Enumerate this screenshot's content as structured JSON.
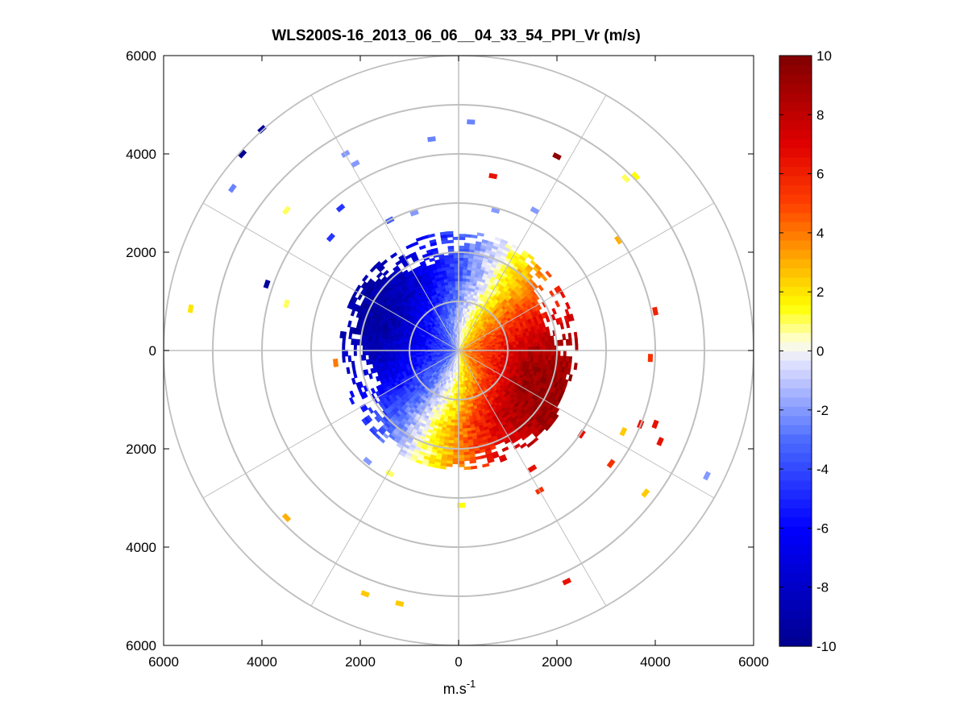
{
  "chart_data": {
    "type": "heatmap",
    "subtype": "polar-ppi",
    "title": "WLS200S-16_2013_06_06__04_33_54_PPI_Vr (m/s)",
    "xlabel_base": "m.s",
    "xlabel_sup": "-1",
    "ylabel": "",
    "xlim": [
      -6000,
      6000
    ],
    "ylim": [
      -6000,
      6000
    ],
    "x_ticks": [
      -6000,
      -4000,
      -2000,
      0,
      2000,
      4000,
      6000
    ],
    "x_tick_labels": [
      "6000",
      "4000",
      "2000",
      "0",
      "2000",
      "4000",
      "6000"
    ],
    "y_ticks": [
      6000,
      4000,
      2000,
      0,
      -2000,
      -4000,
      -6000
    ],
    "y_tick_labels": [
      "6000",
      "4000",
      "2000",
      "0",
      "2000",
      "4000",
      "6000"
    ],
    "polar_grid": {
      "range_rings": [
        1000,
        2000,
        3000,
        4000,
        5000,
        6000
      ],
      "spokes_deg": [
        0,
        30,
        60,
        90,
        120,
        150,
        180,
        210,
        240,
        270,
        300,
        330
      ]
    },
    "colorbar": {
      "min": -10,
      "max": 10,
      "tick_values": [
        10,
        8,
        6,
        4,
        2,
        0,
        -2,
        -4,
        -6,
        -8,
        -10
      ],
      "tick_labels": [
        "10",
        "8",
        "6",
        "4",
        "2",
        "0",
        "-2",
        "-4",
        "-6",
        "-8",
        "-10"
      ],
      "colormap": "blue-white-yellow-red",
      "stops": [
        {
          "v": -10,
          "color": "#00008f"
        },
        {
          "v": -6,
          "color": "#0000ff"
        },
        {
          "v": -3,
          "color": "#4c6cff"
        },
        {
          "v": -0.3,
          "color": "#e6e6ff"
        },
        {
          "v": 0.3,
          "color": "#ffffe0"
        },
        {
          "v": 1.5,
          "color": "#ffff00"
        },
        {
          "v": 3,
          "color": "#ffb000"
        },
        {
          "v": 5,
          "color": "#ff4000"
        },
        {
          "v": 7,
          "color": "#e00000"
        },
        {
          "v": 10,
          "color": "#800000"
        }
      ]
    },
    "field_model": {
      "description": "radial velocity field; negative on west side, positive on east side",
      "max_range_m": 2400,
      "outliers": [
        {
          "x": -4000,
          "y": 4500,
          "v": -9.5
        },
        {
          "x": -4400,
          "y": 4000,
          "v": -9.8
        },
        {
          "x": -4600,
          "y": 3300,
          "v": -2.5
        },
        {
          "x": -2300,
          "y": 4000,
          "v": -2.0
        },
        {
          "x": -2100,
          "y": 3800,
          "v": -2.0
        },
        {
          "x": -550,
          "y": 4300,
          "v": -2.5
        },
        {
          "x": 250,
          "y": 4650,
          "v": -2.5
        },
        {
          "x": -3500,
          "y": 2850,
          "v": 1.0
        },
        {
          "x": -3900,
          "y": 1350,
          "v": -9.5
        },
        {
          "x": -3500,
          "y": 950,
          "v": 1.0
        },
        {
          "x": -5450,
          "y": 850,
          "v": 2.0
        },
        {
          "x": -2400,
          "y": 2900,
          "v": -4.5
        },
        {
          "x": -2600,
          "y": 2300,
          "v": -4.5
        },
        {
          "x": -1400,
          "y": 2650,
          "v": -3.5
        },
        {
          "x": -900,
          "y": 2800,
          "v": -2.0
        },
        {
          "x": 750,
          "y": 2850,
          "v": -2.0
        },
        {
          "x": 1550,
          "y": 2850,
          "v": -2.0
        },
        {
          "x": 2000,
          "y": 3950,
          "v": 9.5
        },
        {
          "x": 700,
          "y": 3550,
          "v": 6.5
        },
        {
          "x": 3400,
          "y": 3500,
          "v": 1.0
        },
        {
          "x": 3600,
          "y": 3550,
          "v": 1.5
        },
        {
          "x": 3250,
          "y": 2250,
          "v": 3.0
        },
        {
          "x": 4000,
          "y": 800,
          "v": 6.0
        },
        {
          "x": 3900,
          "y": -150,
          "v": 5.5
        },
        {
          "x": 3700,
          "y": -1500,
          "v": 6.5
        },
        {
          "x": 4000,
          "y": -1500,
          "v": 6.5
        },
        {
          "x": 4100,
          "y": -1850,
          "v": 6.5
        },
        {
          "x": 3350,
          "y": -1650,
          "v": 2.5
        },
        {
          "x": 3100,
          "y": -2300,
          "v": 5.5
        },
        {
          "x": 3800,
          "y": -2900,
          "v": 2.5
        },
        {
          "x": 5050,
          "y": -2550,
          "v": -2.0
        },
        {
          "x": -2500,
          "y": -250,
          "v": 4.0
        },
        {
          "x": -1850,
          "y": -2250,
          "v": -2.0
        },
        {
          "x": -1400,
          "y": -2500,
          "v": 1.0
        },
        {
          "x": -3500,
          "y": -3400,
          "v": 3.0
        },
        {
          "x": -1900,
          "y": -4950,
          "v": 2.5
        },
        {
          "x": -1200,
          "y": -5150,
          "v": 2.5
        },
        {
          "x": 50,
          "y": -3150,
          "v": 1.5
        },
        {
          "x": 1650,
          "y": -2850,
          "v": 5.5
        },
        {
          "x": 2200,
          "y": -4700,
          "v": 6.5
        },
        {
          "x": 1500,
          "y": -2400,
          "v": 6.5
        },
        {
          "x": 2500,
          "y": -1700,
          "v": 6.5
        }
      ]
    }
  }
}
